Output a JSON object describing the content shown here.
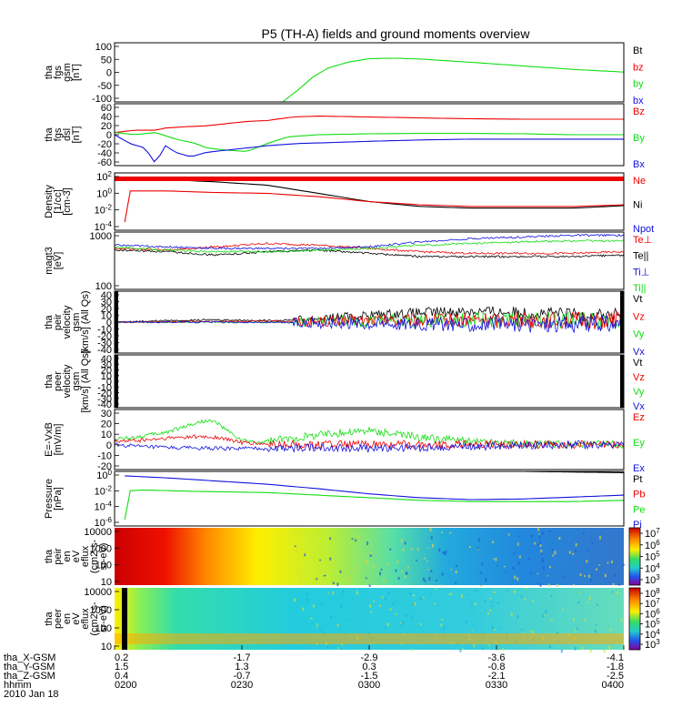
{
  "title": "P5 (TH-A) fields and ground moments overview",
  "colors": {
    "black": "#000000",
    "red": "#ee0000",
    "green": "#11dd11",
    "blue": "#1111dd"
  },
  "chart_data": [
    {
      "type": "line",
      "ylabel": [
        "tha",
        "fgs",
        "gsm",
        "[nT]"
      ],
      "ylim": [
        -100,
        100
      ],
      "yticks": [
        "100",
        "50",
        "0",
        "-50",
        "-100"
      ],
      "legend": [
        {
          "name": "Bt",
          "color": "black"
        },
        {
          "name": "bz",
          "color": "red"
        },
        {
          "name": "by",
          "color": "green"
        },
        {
          "name": "bx",
          "color": "blue"
        }
      ],
      "series": [
        {
          "name": "by",
          "color": "green",
          "x": [
            0.33,
            0.36,
            0.39,
            0.42,
            0.46,
            0.5,
            0.55,
            0.6,
            0.7,
            0.8,
            0.9,
            1.0
          ],
          "values": [
            -100,
            -60,
            -15,
            15,
            35,
            46,
            48,
            45,
            34,
            22,
            10,
            1
          ]
        }
      ]
    },
    {
      "type": "line",
      "ylabel": [
        "tha",
        "fgs",
        "dsl",
        "[nT]"
      ],
      "ylim": [
        -70,
        70
      ],
      "yticks": [
        "60",
        "40",
        "20",
        "0",
        "-20",
        "-40",
        "-60"
      ],
      "legend": [
        {
          "name": "Bz",
          "color": "red"
        },
        {
          "name": "By",
          "color": "green"
        },
        {
          "name": "Bx",
          "color": "blue"
        }
      ],
      "series": [
        {
          "name": "Bz",
          "color": "red",
          "x": [
            0.0,
            0.04,
            0.08,
            0.1,
            0.14,
            0.18,
            0.22,
            0.26,
            0.3,
            0.35,
            0.4,
            0.5,
            0.6,
            0.7,
            0.8,
            0.9,
            1.0
          ],
          "values": [
            5,
            10,
            10,
            15,
            18,
            20,
            25,
            30,
            32,
            40,
            42,
            40,
            38,
            36,
            35,
            35,
            35
          ]
        },
        {
          "name": "By",
          "color": "green",
          "x": [
            0.0,
            0.04,
            0.08,
            0.12,
            0.16,
            0.18,
            0.22,
            0.26,
            0.3,
            0.34,
            0.4,
            0.5,
            0.6,
            0.7,
            0.8,
            0.9,
            1.0
          ],
          "values": [
            5,
            0,
            5,
            -10,
            -20,
            -30,
            -35,
            -38,
            -20,
            -5,
            0,
            2,
            3,
            3,
            2,
            0,
            0
          ]
        },
        {
          "name": "Bx",
          "color": "blue",
          "x": [
            0.0,
            0.03,
            0.06,
            0.08,
            0.1,
            0.12,
            0.15,
            0.18,
            0.22,
            0.26,
            0.3,
            0.36,
            0.42,
            0.5,
            0.6,
            0.7,
            0.8,
            0.9,
            1.0
          ],
          "values": [
            0,
            -20,
            -30,
            -65,
            -25,
            -40,
            -50,
            -40,
            -35,
            -30,
            -25,
            -20,
            -18,
            -15,
            -12,
            -10,
            -10,
            -10,
            -10
          ]
        }
      ]
    },
    {
      "type": "line",
      "ylabel": [
        "Density",
        "[1/cc]",
        "[cm-3]"
      ],
      "ylim": [
        -4.5,
        2.5
      ],
      "yscale": "log",
      "yticks": [
        "10^2",
        "10^0",
        "10^-2",
        "10^-4"
      ],
      "legend": [
        {
          "name": "Ne",
          "color": "red"
        },
        {
          "name": "Ni",
          "color": "black"
        },
        {
          "name": "Npot",
          "color": "blue"
        }
      ],
      "series": [
        {
          "name": "Ni",
          "color": "black",
          "x": [
            0.02,
            0.1,
            0.2,
            0.3,
            0.4,
            0.5,
            0.6,
            0.7,
            0.8,
            0.9,
            1.0
          ],
          "values": [
            1.8,
            1.7,
            1.4,
            1.0,
            0.0,
            -1.0,
            -1.6,
            -1.8,
            -1.8,
            -1.8,
            -1.5
          ]
        },
        {
          "name": "Ne",
          "color": "red",
          "x": [
            0.02,
            0.03,
            0.06,
            0.1,
            0.2,
            0.3,
            0.4,
            0.5,
            0.6,
            0.7,
            0.8,
            0.9,
            1.0
          ],
          "values": [
            -3.5,
            0.3,
            0.3,
            0.3,
            0.1,
            0.0,
            -0.4,
            -1.0,
            -1.4,
            -1.6,
            -1.6,
            -1.6,
            -1.4
          ]
        }
      ]
    },
    {
      "type": "line",
      "ylabel": [
        "magt3",
        "[eV]"
      ],
      "ylim": [
        1.3,
        3.05
      ],
      "yscale": "log",
      "yticks": [
        "1000",
        "100"
      ],
      "legend": [
        {
          "name": "Te⊥",
          "color": "red"
        },
        {
          "name": "Te||",
          "color": "black"
        },
        {
          "name": "Ti⊥",
          "color": "blue"
        },
        {
          "name": "Ti||",
          "color": "green"
        }
      ],
      "series": [
        {
          "name": "Te||",
          "color": "black",
          "x": [
            0.0,
            0.1,
            0.2,
            0.3,
            0.4,
            0.5,
            0.6,
            0.7,
            0.8,
            0.9,
            1.0
          ],
          "values": [
            2.5,
            2.45,
            2.35,
            2.45,
            2.5,
            2.4,
            2.3,
            2.3,
            2.3,
            2.3,
            2.35
          ]
        },
        {
          "name": "Te⊥",
          "color": "red",
          "x": [
            0.0,
            0.1,
            0.2,
            0.3,
            0.4,
            0.5,
            0.6,
            0.7,
            0.8,
            0.9,
            1.0
          ],
          "values": [
            2.55,
            2.5,
            2.6,
            2.7,
            2.65,
            2.55,
            2.45,
            2.4,
            2.4,
            2.4,
            2.45
          ]
        },
        {
          "name": "Ti⊥",
          "color": "blue",
          "x": [
            0.0,
            0.1,
            0.2,
            0.3,
            0.4,
            0.5,
            0.6,
            0.7,
            0.8,
            0.9,
            1.0
          ],
          "values": [
            2.65,
            2.6,
            2.55,
            2.55,
            2.55,
            2.6,
            2.75,
            2.85,
            2.9,
            2.95,
            2.95
          ]
        },
        {
          "name": "Ti||",
          "color": "green",
          "x": [
            0.0,
            0.1,
            0.2,
            0.3,
            0.4,
            0.5,
            0.6,
            0.7,
            0.8,
            0.9,
            1.0
          ],
          "values": [
            2.6,
            2.5,
            2.45,
            2.45,
            2.5,
            2.55,
            2.65,
            2.7,
            2.75,
            2.78,
            2.78
          ]
        }
      ]
    },
    {
      "type": "line",
      "ylabel": [
        "tha",
        "peir",
        "velocity",
        "gsm",
        "[km/s] (All Qs)"
      ],
      "ylim": [
        -40,
        40
      ],
      "yticks": [
        "40",
        "30",
        "20",
        "10",
        "0",
        "-10",
        "-20",
        "-30",
        "-40"
      ],
      "legend": [
        {
          "name": "Vt",
          "color": "black"
        },
        {
          "name": "Vz",
          "color": "red"
        },
        {
          "name": "Vy",
          "color": "green"
        },
        {
          "name": "Vx",
          "color": "blue"
        }
      ],
      "series": [
        {
          "name": "Vt",
          "color": "black",
          "x": [
            0.0,
            0.1,
            0.2,
            0.3,
            0.35,
            0.4,
            0.5,
            0.6,
            0.7,
            0.8,
            0.9,
            1.0
          ],
          "values": [
            0,
            2,
            3,
            2,
            3,
            5,
            9,
            12,
            14,
            12,
            10,
            9
          ]
        },
        {
          "name": "Vy",
          "color": "green",
          "x": [
            0.0,
            0.2,
            0.4,
            0.5,
            0.6,
            0.7,
            0.8,
            0.9,
            1.0
          ],
          "values": [
            0,
            0,
            0,
            1,
            2,
            3,
            2,
            2,
            2
          ]
        },
        {
          "name": "Vz",
          "color": "red",
          "x": [
            0.0,
            0.2,
            0.4,
            0.5,
            0.6,
            0.7,
            0.8,
            0.9,
            1.0
          ],
          "values": [
            0,
            1,
            1,
            2,
            2,
            3,
            3,
            2,
            2
          ]
        },
        {
          "name": "Vx",
          "color": "blue",
          "x": [
            0.0,
            0.2,
            0.4,
            0.5,
            0.6,
            0.7,
            0.8,
            0.9,
            1.0
          ],
          "values": [
            0,
            0,
            -1,
            -1,
            -2,
            -3,
            -3,
            -2,
            -2
          ]
        }
      ]
    },
    {
      "type": "line",
      "ylabel": [
        "tha",
        "peer",
        "velocity",
        "gsm",
        "[km/s] (All Qs)"
      ],
      "ylim": [
        -40,
        40
      ],
      "yticks": [
        "40",
        "30",
        "20",
        "10",
        "0",
        "-10",
        "-20",
        "-30",
        "-40"
      ],
      "legend": [
        {
          "name": "Vt",
          "color": "black"
        },
        {
          "name": "Vz",
          "color": "red"
        },
        {
          "name": "Vy",
          "color": "green"
        },
        {
          "name": "Vx",
          "color": "blue"
        }
      ],
      "series": []
    },
    {
      "type": "line",
      "ylabel": [
        "E=-VxB",
        "[mV/m]"
      ],
      "ylim": [
        -25,
        35
      ],
      "yticks": [
        "30",
        "20",
        "10",
        "0",
        "-10",
        "-20"
      ],
      "legend": [
        {
          "name": "Ez",
          "color": "red"
        },
        {
          "name": "Ey",
          "color": "green"
        },
        {
          "name": "Ex",
          "color": "blue"
        }
      ],
      "series": [
        {
          "name": "Ey",
          "color": "green",
          "x": [
            0.0,
            0.05,
            0.1,
            0.15,
            0.18,
            0.2,
            0.22,
            0.25,
            0.28,
            0.3,
            0.35,
            0.4,
            0.5,
            0.6,
            0.7,
            0.8,
            0.9,
            1.0
          ],
          "values": [
            5,
            8,
            12,
            20,
            24,
            22,
            14,
            4,
            2,
            3,
            6,
            10,
            14,
            7,
            3,
            1,
            0,
            0
          ]
        },
        {
          "name": "Ez",
          "color": "red",
          "x": [
            0.0,
            0.05,
            0.1,
            0.15,
            0.2,
            0.25,
            0.3,
            0.4,
            0.5,
            0.6,
            0.7,
            0.8,
            0.9,
            1.0
          ],
          "values": [
            3,
            4,
            6,
            8,
            7,
            2,
            0,
            0,
            0,
            0,
            0,
            0,
            0,
            0
          ]
        },
        {
          "name": "Ex",
          "color": "blue",
          "x": [
            0.0,
            0.05,
            0.1,
            0.2,
            0.3,
            0.4,
            0.5,
            0.6,
            0.7,
            0.8,
            0.9,
            1.0
          ],
          "values": [
            0,
            -2,
            -3,
            -4,
            -4,
            -3,
            -4,
            -3,
            -2,
            -1,
            0,
            0
          ]
        }
      ]
    },
    {
      "type": "line",
      "ylabel": [
        "Pressure",
        "[nPa]"
      ],
      "ylim": [
        -7,
        1.5
      ],
      "yscale": "log",
      "yticks": [
        "10^0",
        "10^-2",
        "10^-4",
        "10^-6"
      ],
      "legend": [
        {
          "name": "Pt",
          "color": "black"
        },
        {
          "name": "Pb",
          "color": "red"
        },
        {
          "name": "Pe",
          "color": "green"
        },
        {
          "name": "Pi",
          "color": "blue"
        }
      ],
      "series": [
        {
          "name": "Pi",
          "color": "blue",
          "x": [
            0.02,
            0.1,
            0.2,
            0.3,
            0.4,
            0.5,
            0.6,
            0.7,
            0.8,
            0.9,
            1.0
          ],
          "values": [
            0.8,
            0.5,
            0.0,
            -0.5,
            -1.2,
            -2.0,
            -2.6,
            -2.9,
            -2.8,
            -2.5,
            -2.2
          ]
        },
        {
          "name": "Pe",
          "color": "green",
          "x": [
            0.02,
            0.03,
            0.06,
            0.15,
            0.3,
            0.4,
            0.5,
            0.6,
            0.7,
            0.8,
            0.9,
            1.0
          ],
          "values": [
            -6.0,
            -1.5,
            -1.4,
            -1.6,
            -1.8,
            -2.2,
            -2.6,
            -3.0,
            -3.2,
            -3.2,
            -3.2,
            -3.0
          ]
        },
        {
          "name": "Pt",
          "color": "black",
          "x": [
            0.8,
            0.9,
            1.0
          ],
          "values": [
            1.5,
            1.4,
            1.3
          ]
        }
      ]
    },
    {
      "type": "heatmap",
      "ylabel": [
        "tha",
        "peir",
        "en",
        "eV",
        "eflux",
        "(cm2-s-",
        "sr-eV)"
      ],
      "ylim": [
        1.0,
        4.3
      ],
      "yscale": "log",
      "yticks": [
        "10000",
        "1000",
        "100",
        "10"
      ],
      "colorbar_ticks": [
        "10^7",
        "10^6",
        "10^5",
        "10^4",
        "10^3"
      ]
    },
    {
      "type": "heatmap",
      "ylabel": [
        "tha",
        "peer",
        "en",
        "eV",
        "eflux",
        "(cm2-s-",
        "sr-eV)"
      ],
      "ylim": [
        0.85,
        4.3
      ],
      "yscale": "log",
      "yticks": [
        "10000",
        "1000",
        "100",
        "10"
      ],
      "colorbar_ticks": [
        "10^8",
        "10^7",
        "10^6",
        "10^5",
        "10^4",
        "10^3"
      ]
    }
  ],
  "xaxis": {
    "rows": [
      {
        "label": "tha_X-GSM",
        "values": [
          "0.2",
          "-1.7",
          "-2.9",
          "-3.6",
          "-4.1"
        ]
      },
      {
        "label": "tha_Y-GSM",
        "values": [
          "1.5",
          "1.3",
          "0.3",
          "-0.8",
          "-1.8"
        ]
      },
      {
        "label": "tha_Z-GSM",
        "values": [
          "0.4",
          "-0.7",
          "-1.5",
          "-2.1",
          "-2.5"
        ]
      },
      {
        "label": "hhmm",
        "values": [
          "0200",
          "0230",
          "0300",
          "0330",
          "0400"
        ]
      }
    ],
    "date": "2010 Jan 18"
  }
}
